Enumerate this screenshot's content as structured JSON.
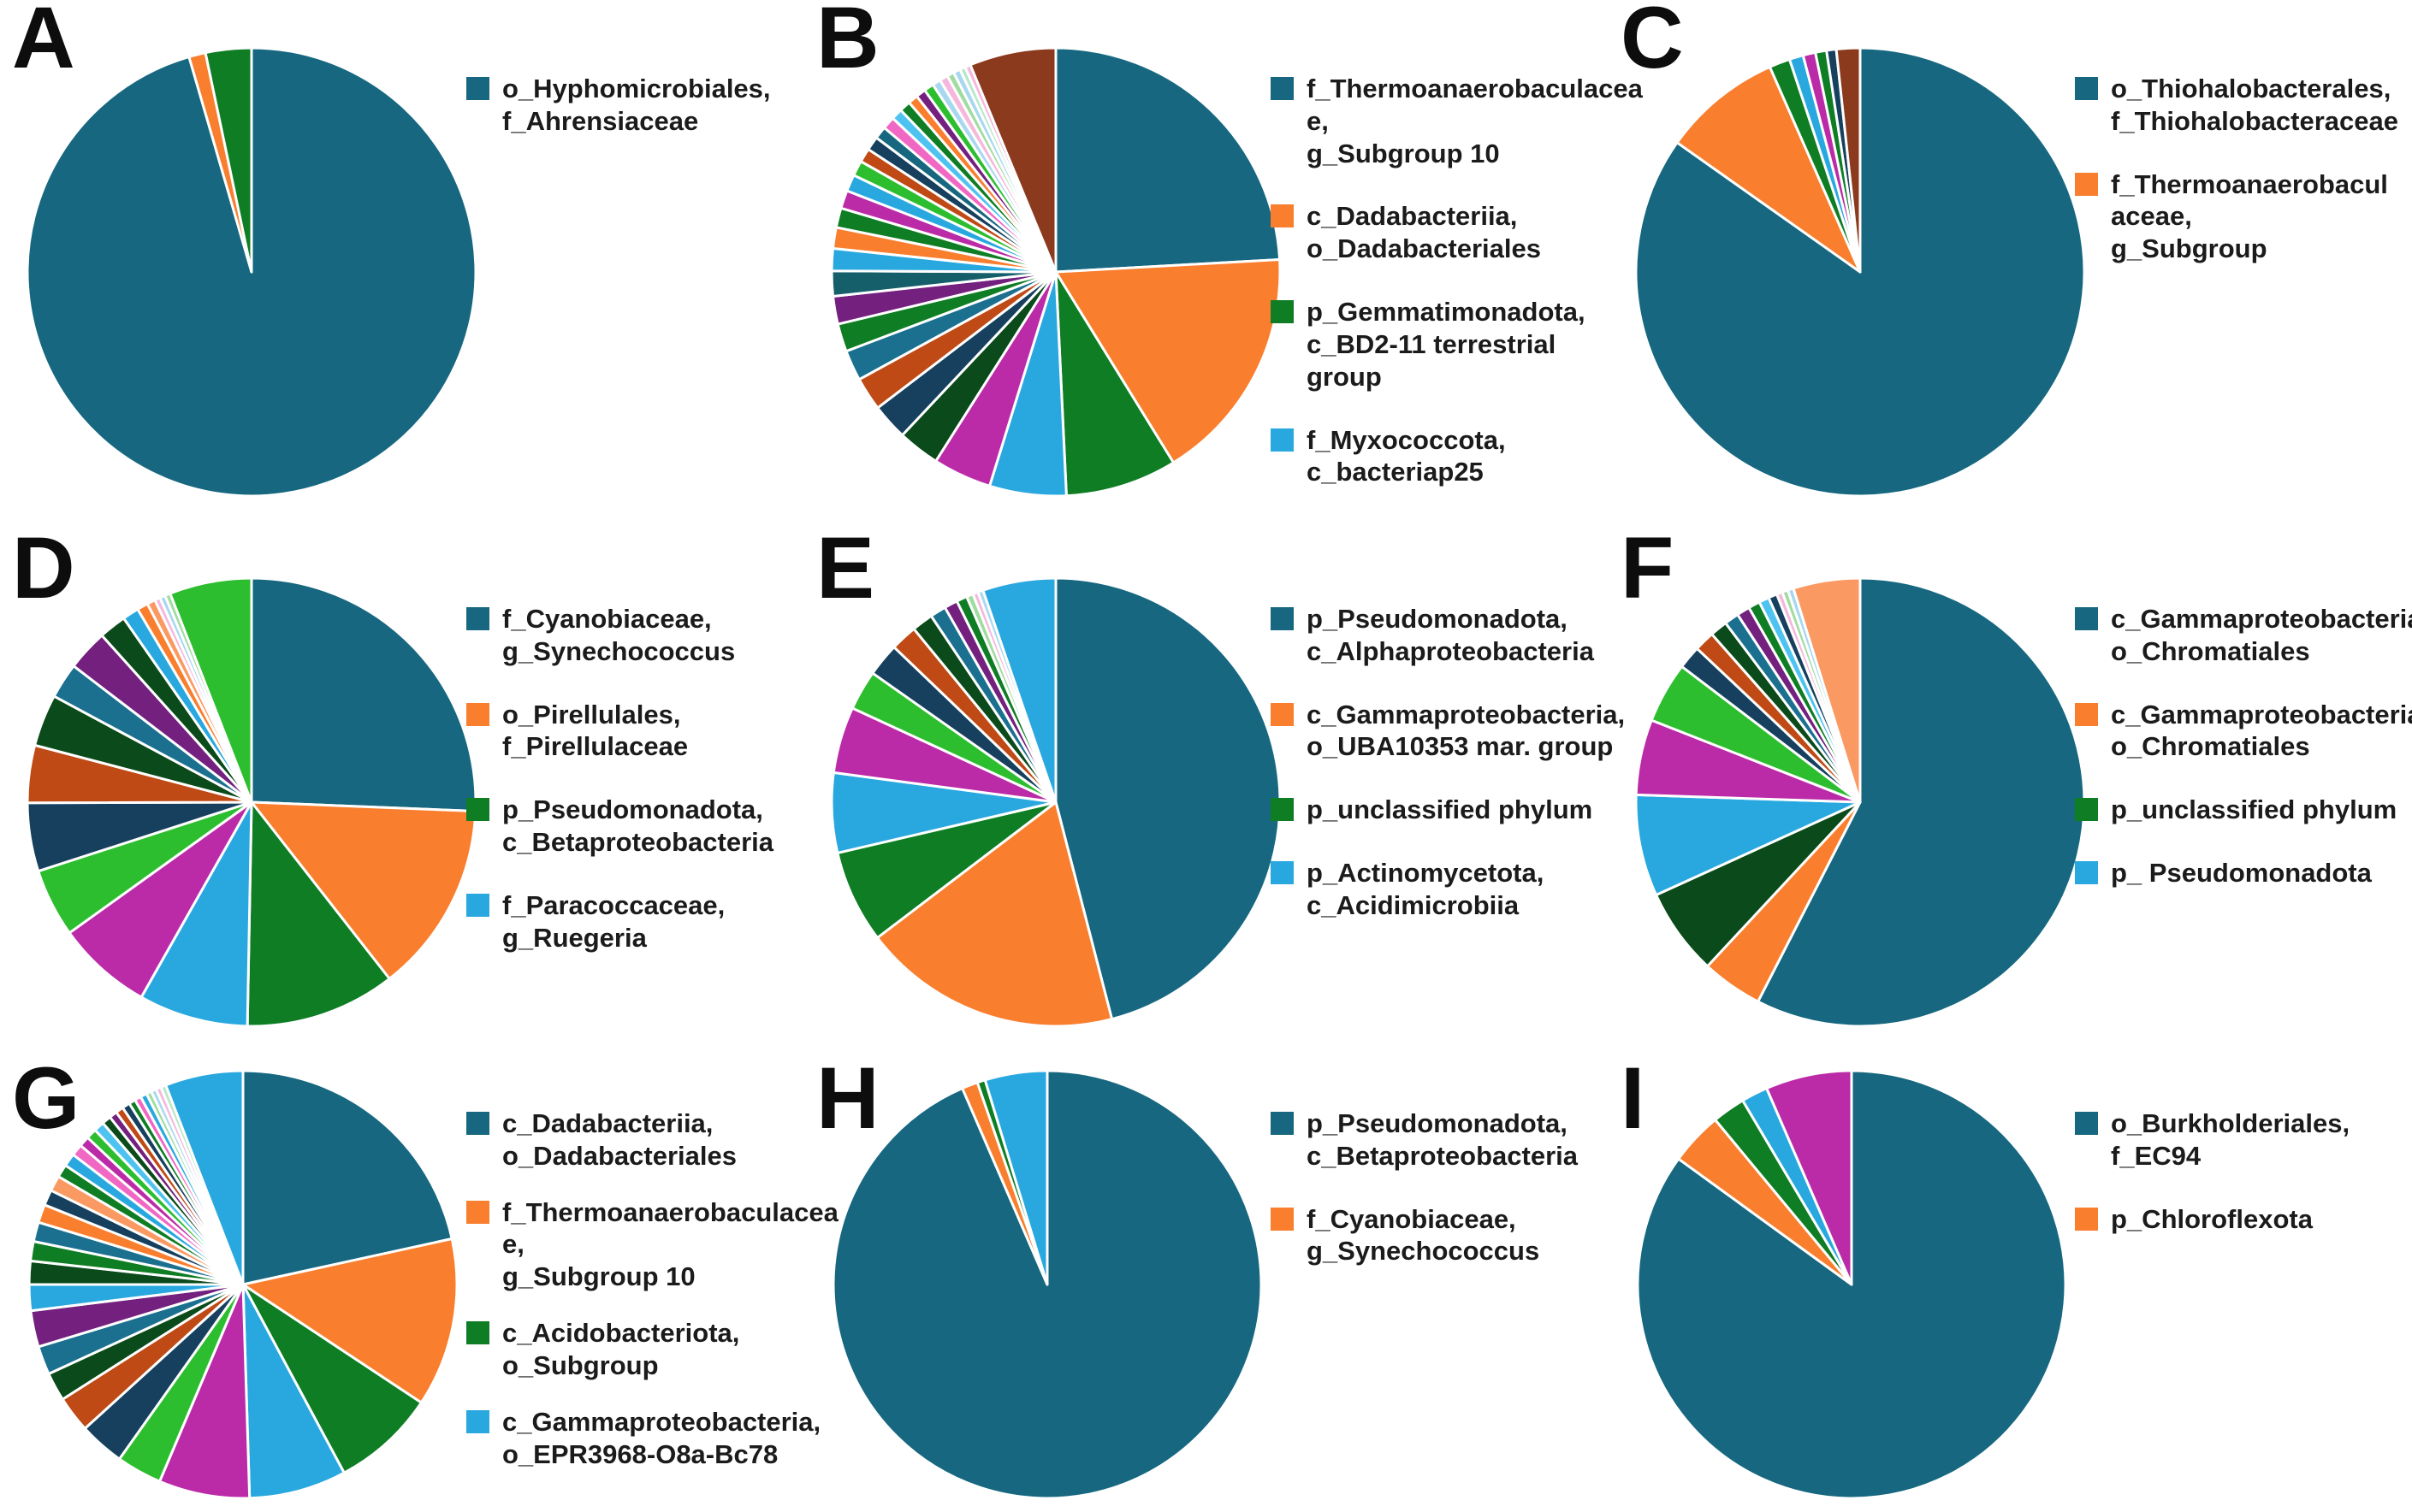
{
  "figure": {
    "background": "#ffffff",
    "layout": "3x3 grid of pie charts with legends",
    "panel_letters": [
      "A",
      "B",
      "C",
      "D",
      "E",
      "F",
      "G",
      "H",
      "I"
    ]
  },
  "palette": {
    "teal": "#16677F",
    "orange": "#F97E2E",
    "green": "#0E7D23",
    "lightblue": "#29A8E0",
    "magenta": "#BB2BA8",
    "lime": "#2DBE2F",
    "navy": "#16405E",
    "rust": "#BF4A15",
    "darkgreen": "#0B4A1A",
    "tealblue": "#1B7090",
    "purple": "#73207F",
    "darkteal": "#155F6B",
    "brown": "#8C3A1D",
    "pink": "#F068C4",
    "salmon": "#FA9A62",
    "cyan": "#4FC3F0",
    "paleblue": "#A8D8F0",
    "palegreen": "#A0DCA0",
    "palepink": "#F5B8DC",
    "mint": "#B8E8C8"
  },
  "chart_data": [
    {
      "type": "pie",
      "panel": "A",
      "legend": [
        {
          "color": "#16677F",
          "label": "o_Hyphomicrobiales,\nf_Ahrensiaceae"
        }
      ],
      "slices": [
        {
          "color": "#16677F",
          "value": 95.5
        },
        {
          "color": "#F97E2E",
          "value": 1.2
        },
        {
          "color": "#0E7D23",
          "value": 3.3
        }
      ]
    },
    {
      "type": "pie",
      "panel": "B",
      "legend": [
        {
          "color": "#16677F",
          "label": "f_Thermoanaerobaculacea\ne,\ng_Subgroup 10"
        },
        {
          "color": "#F97E2E",
          "label": "c_Dadabacteriia,\no_Dadabacteriales"
        },
        {
          "color": "#0E7D23",
          "label": "p_Gemmatimonadota,\nc_BD2-11 terrestrial group"
        },
        {
          "color": "#29A8E0",
          "label": "f_Myxococcota,\nc_bacteriap25"
        }
      ],
      "slices": [
        {
          "color": "#16677F",
          "value": 24
        },
        {
          "color": "#F97E2E",
          "value": 17
        },
        {
          "color": "#0E7D23",
          "value": 8
        },
        {
          "color": "#29A8E0",
          "value": 5.5
        },
        {
          "color": "#BB2BA8",
          "value": 4.2
        },
        {
          "color": "#0B4A1A",
          "value": 3.0
        },
        {
          "color": "#16405E",
          "value": 2.6
        },
        {
          "color": "#BF4A15",
          "value": 2.4
        },
        {
          "color": "#1B7090",
          "value": 2.2
        },
        {
          "color": "#0E7D23",
          "value": 2.0
        },
        {
          "color": "#73207F",
          "value": 2.0
        },
        {
          "color": "#155F6B",
          "value": 1.8
        },
        {
          "color": "#29A8E0",
          "value": 1.6
        },
        {
          "color": "#F97E2E",
          "value": 1.5
        },
        {
          "color": "#0E7D23",
          "value": 1.4
        },
        {
          "color": "#BB2BA8",
          "value": 1.3
        },
        {
          "color": "#29A8E0",
          "value": 1.2
        },
        {
          "color": "#2DBE2F",
          "value": 1.1
        },
        {
          "color": "#BF4A15",
          "value": 1.0
        },
        {
          "color": "#16405E",
          "value": 1.0
        },
        {
          "color": "#16677F",
          "value": 0.9
        },
        {
          "color": "#F068C4",
          "value": 0.9
        },
        {
          "color": "#4FC3F0",
          "value": 0.8
        },
        {
          "color": "#0E7D23",
          "value": 0.8
        },
        {
          "color": "#F97E2E",
          "value": 0.7
        },
        {
          "color": "#73207F",
          "value": 0.7
        },
        {
          "color": "#2DBE2F",
          "value": 0.7
        },
        {
          "color": "#A8D8F0",
          "value": 0.6
        },
        {
          "color": "#F5B8DC",
          "value": 0.6
        },
        {
          "color": "#A0DCA0",
          "value": 0.5
        },
        {
          "color": "#A8D8F0",
          "value": 0.5
        },
        {
          "color": "#B8E8C8",
          "value": 0.4
        },
        {
          "color": "#F5B8DC",
          "value": 0.4
        },
        {
          "color": "#8C3A1D",
          "value": 6.2
        }
      ]
    },
    {
      "type": "pie",
      "panel": "C",
      "legend": [
        {
          "color": "#16677F",
          "label": "o_Thiohalobacterales,\nf_Thiohalobacteraceae"
        },
        {
          "color": "#F97E2E",
          "label": "f_Thermoanaerobacul\naceae,\ng_Subgroup"
        }
      ],
      "slices": [
        {
          "color": "#16677F",
          "value": 84.8
        },
        {
          "color": "#F97E2E",
          "value": 8.6
        },
        {
          "color": "#0E7D23",
          "value": 1.5
        },
        {
          "color": "#29A8E0",
          "value": 1.0
        },
        {
          "color": "#BB2BA8",
          "value": 0.9
        },
        {
          "color": "#0E7D23",
          "value": 0.8
        },
        {
          "color": "#16405E",
          "value": 0.7
        },
        {
          "color": "#8C3A1D",
          "value": 1.7
        }
      ]
    },
    {
      "type": "pie",
      "panel": "D",
      "legend": [
        {
          "color": "#16677F",
          "label": "f_Cyanobiaceae,\ng_Synechococcus"
        },
        {
          "color": "#F97E2E",
          "label": "o_Pirellulales,\nf_Pirellulaceae"
        },
        {
          "color": "#0E7D23",
          "label": "p_Pseudomonadota,\nc_Betaproteobacteria"
        },
        {
          "color": "#29A8E0",
          "label": "f_Paracoccaceae,\ng_Ruegeria"
        }
      ],
      "slices": [
        {
          "color": "#16677F",
          "value": 26
        },
        {
          "color": "#F97E2E",
          "value": 14
        },
        {
          "color": "#0E7D23",
          "value": 11
        },
        {
          "color": "#29A8E0",
          "value": 8
        },
        {
          "color": "#BB2BA8",
          "value": 7
        },
        {
          "color": "#2DBE2F",
          "value": 5
        },
        {
          "color": "#16405E",
          "value": 5
        },
        {
          "color": "#BF4A15",
          "value": 4.2
        },
        {
          "color": "#0B4A1A",
          "value": 3.8
        },
        {
          "color": "#1B7090",
          "value": 2.6
        },
        {
          "color": "#73207F",
          "value": 3.0
        },
        {
          "color": "#0B4A1A",
          "value": 2.0
        },
        {
          "color": "#29A8E0",
          "value": 1.2
        },
        {
          "color": "#F97E2E",
          "value": 0.8
        },
        {
          "color": "#FA9A62",
          "value": 0.6
        },
        {
          "color": "#F5B8DC",
          "value": 0.4
        },
        {
          "color": "#A8D8F0",
          "value": 0.4
        },
        {
          "color": "#A0DCA0",
          "value": 0.4
        },
        {
          "color": "#2DBE2F",
          "value": 6.0
        }
      ]
    },
    {
      "type": "pie",
      "panel": "E",
      "legend": [
        {
          "color": "#16677F",
          "label": "p_Pseudomonadota,\nc_Alphaproteobacteria"
        },
        {
          "color": "#F97E2E",
          "label": "c_Gammaproteobacteria,\no_UBA10353 mar. group"
        },
        {
          "color": "#0E7D23",
          "label": "p_unclassified phylum"
        },
        {
          "color": "#29A8E0",
          "label": "p_Actinomycetota,\nc_Acidimicrobiia"
        }
      ],
      "slices": [
        {
          "color": "#16677F",
          "value": 48
        },
        {
          "color": "#F97E2E",
          "value": 19.5
        },
        {
          "color": "#0E7D23",
          "value": 7
        },
        {
          "color": "#29A8E0",
          "value": 6
        },
        {
          "color": "#BB2BA8",
          "value": 5
        },
        {
          "color": "#2DBE2F",
          "value": 3
        },
        {
          "color": "#16405E",
          "value": 2.5
        },
        {
          "color": "#BF4A15",
          "value": 2
        },
        {
          "color": "#0B4A1A",
          "value": 1.6
        },
        {
          "color": "#1B7090",
          "value": 1.2
        },
        {
          "color": "#73207F",
          "value": 1.0
        },
        {
          "color": "#0E7D23",
          "value": 0.8
        },
        {
          "color": "#A0DCA0",
          "value": 0.5
        },
        {
          "color": "#F5B8DC",
          "value": 0.4
        },
        {
          "color": "#A8D8F0",
          "value": 0.4
        },
        {
          "color": "#29A8E0",
          "value": 5.5
        }
      ]
    },
    {
      "type": "pie",
      "panel": "F",
      "legend": [
        {
          "color": "#16677F",
          "label": "c_Gammaproteobacteria,\no_Chromatiales"
        },
        {
          "color": "#F97E2E",
          "label": "c_Gammaproteobacteria,\no_Chromatiales"
        },
        {
          "color": "#0E7D23",
          "label": "p_unclassified phylum"
        },
        {
          "color": "#29A8E0",
          "label": "p_ Pseudomonadota"
        }
      ],
      "slices": [
        {
          "color": "#16677F",
          "value": 55
        },
        {
          "color": "#F97E2E",
          "value": 4.2
        },
        {
          "color": "#0B4A1A",
          "value": 6
        },
        {
          "color": "#29A8E0",
          "value": 7
        },
        {
          "color": "#BB2BA8",
          "value": 5.2
        },
        {
          "color": "#2DBE2F",
          "value": 4.2
        },
        {
          "color": "#16405E",
          "value": 1.6
        },
        {
          "color": "#BF4A15",
          "value": 1.4
        },
        {
          "color": "#0B4A1A",
          "value": 1.2
        },
        {
          "color": "#1B7090",
          "value": 1.0
        },
        {
          "color": "#73207F",
          "value": 0.9
        },
        {
          "color": "#0E7D23",
          "value": 0.8
        },
        {
          "color": "#4FC3F0",
          "value": 0.7
        },
        {
          "color": "#16405E",
          "value": 0.6
        },
        {
          "color": "#F5B8DC",
          "value": 0.4
        },
        {
          "color": "#A0DCA0",
          "value": 0.4
        },
        {
          "color": "#A8D8F0",
          "value": 0.4
        },
        {
          "color": "#FA9A62",
          "value": 4.6
        }
      ]
    },
    {
      "type": "pie",
      "panel": "G",
      "legend": [
        {
          "color": "#16677F",
          "label": "c_Dadabacteriia,\no_Dadabacteriales"
        },
        {
          "color": "#F97E2E",
          "label": "f_Thermoanaerobaculacea\ne,\ng_Subgroup 10"
        },
        {
          "color": "#0E7D23",
          "label": "c_Acidobacteriota,\no_Subgroup"
        },
        {
          "color": "#29A8E0",
          "label": "c_Gammaproteobacteria,\no_EPR3968-O8a-Bc78"
        }
      ],
      "slices": [
        {
          "color": "#16677F",
          "value": 22
        },
        {
          "color": "#F97E2E",
          "value": 13
        },
        {
          "color": "#0E7D23",
          "value": 8
        },
        {
          "color": "#29A8E0",
          "value": 7.5
        },
        {
          "color": "#BB2BA8",
          "value": 7
        },
        {
          "color": "#2DBE2F",
          "value": 3.5
        },
        {
          "color": "#16405E",
          "value": 3.5
        },
        {
          "color": "#BF4A15",
          "value": 2.8
        },
        {
          "color": "#0B4A1A",
          "value": 2.2
        },
        {
          "color": "#1B7090",
          "value": 2.2
        },
        {
          "color": "#73207F",
          "value": 2.8
        },
        {
          "color": "#29A8E0",
          "value": 2.0
        },
        {
          "color": "#0B4A1A",
          "value": 1.8
        },
        {
          "color": "#0E7D23",
          "value": 1.5
        },
        {
          "color": "#1B7090",
          "value": 1.5
        },
        {
          "color": "#F97E2E",
          "value": 1.4
        },
        {
          "color": "#16405E",
          "value": 1.2
        },
        {
          "color": "#FA9A62",
          "value": 1.2
        },
        {
          "color": "#0E7D23",
          "value": 1.0
        },
        {
          "color": "#29A8E0",
          "value": 1.0
        },
        {
          "color": "#F068C4",
          "value": 0.9
        },
        {
          "color": "#BB2BA8",
          "value": 0.8
        },
        {
          "color": "#2DBE2F",
          "value": 0.8
        },
        {
          "color": "#4FC3F0",
          "value": 0.8
        },
        {
          "color": "#0B4A1A",
          "value": 0.7
        },
        {
          "color": "#73207F",
          "value": 0.6
        },
        {
          "color": "#BF4A15",
          "value": 0.6
        },
        {
          "color": "#16405E",
          "value": 0.6
        },
        {
          "color": "#0E7D23",
          "value": 0.5
        },
        {
          "color": "#F068C4",
          "value": 0.5
        },
        {
          "color": "#29A8E0",
          "value": 0.5
        },
        {
          "color": "#A0DCA0",
          "value": 0.4
        },
        {
          "color": "#A8D8F0",
          "value": 0.4
        },
        {
          "color": "#F5B8DC",
          "value": 0.4
        },
        {
          "color": "#B8E8C8",
          "value": 0.4
        },
        {
          "color": "#29A8E0",
          "value": 6.0
        }
      ]
    },
    {
      "type": "pie",
      "panel": "H",
      "legend": [
        {
          "color": "#16677F",
          "label": "p_Pseudomonadota,\nc_Betaproteobacteria"
        },
        {
          "color": "#F97E2E",
          "label": "f_Cyanobiaceae,\ng_Synechococcus"
        }
      ],
      "slices": [
        {
          "color": "#16677F",
          "value": 93.5
        },
        {
          "color": "#F97E2E",
          "value": 1.2
        },
        {
          "color": "#0E7D23",
          "value": 0.6
        },
        {
          "color": "#29A8E0",
          "value": 4.7
        }
      ]
    },
    {
      "type": "pie",
      "panel": "I",
      "legend": [
        {
          "color": "#16677F",
          "label": "o_Burkholderiales,\nf_EC94"
        },
        {
          "color": "#F97E2E",
          "label": "p_Chloroflexota"
        }
      ],
      "slices": [
        {
          "color": "#16677F",
          "value": 85
        },
        {
          "color": "#F97E2E",
          "value": 4
        },
        {
          "color": "#0E7D23",
          "value": 2.5
        },
        {
          "color": "#29A8E0",
          "value": 2
        },
        {
          "color": "#BB2BA8",
          "value": 6.5
        }
      ]
    }
  ]
}
